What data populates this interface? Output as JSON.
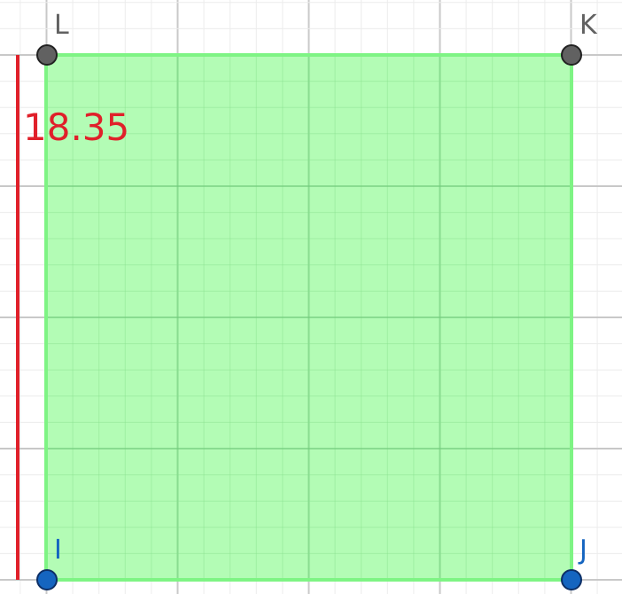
{
  "points": {
    "L": {
      "label": "L",
      "color": "#616161"
    },
    "K": {
      "label": "K",
      "color": "#616161"
    },
    "I": {
      "label": "I",
      "color": "#1565c0"
    },
    "J": {
      "label": "J",
      "color": "#1565c0"
    }
  },
  "segment_length": {
    "label": "18.35",
    "color": "#e0202a"
  },
  "square": {
    "fill": "#a6fca8",
    "stroke": "#7ef484"
  },
  "grid": {
    "minor_color": "#ececec",
    "major_color": "#c8c8c8"
  }
}
